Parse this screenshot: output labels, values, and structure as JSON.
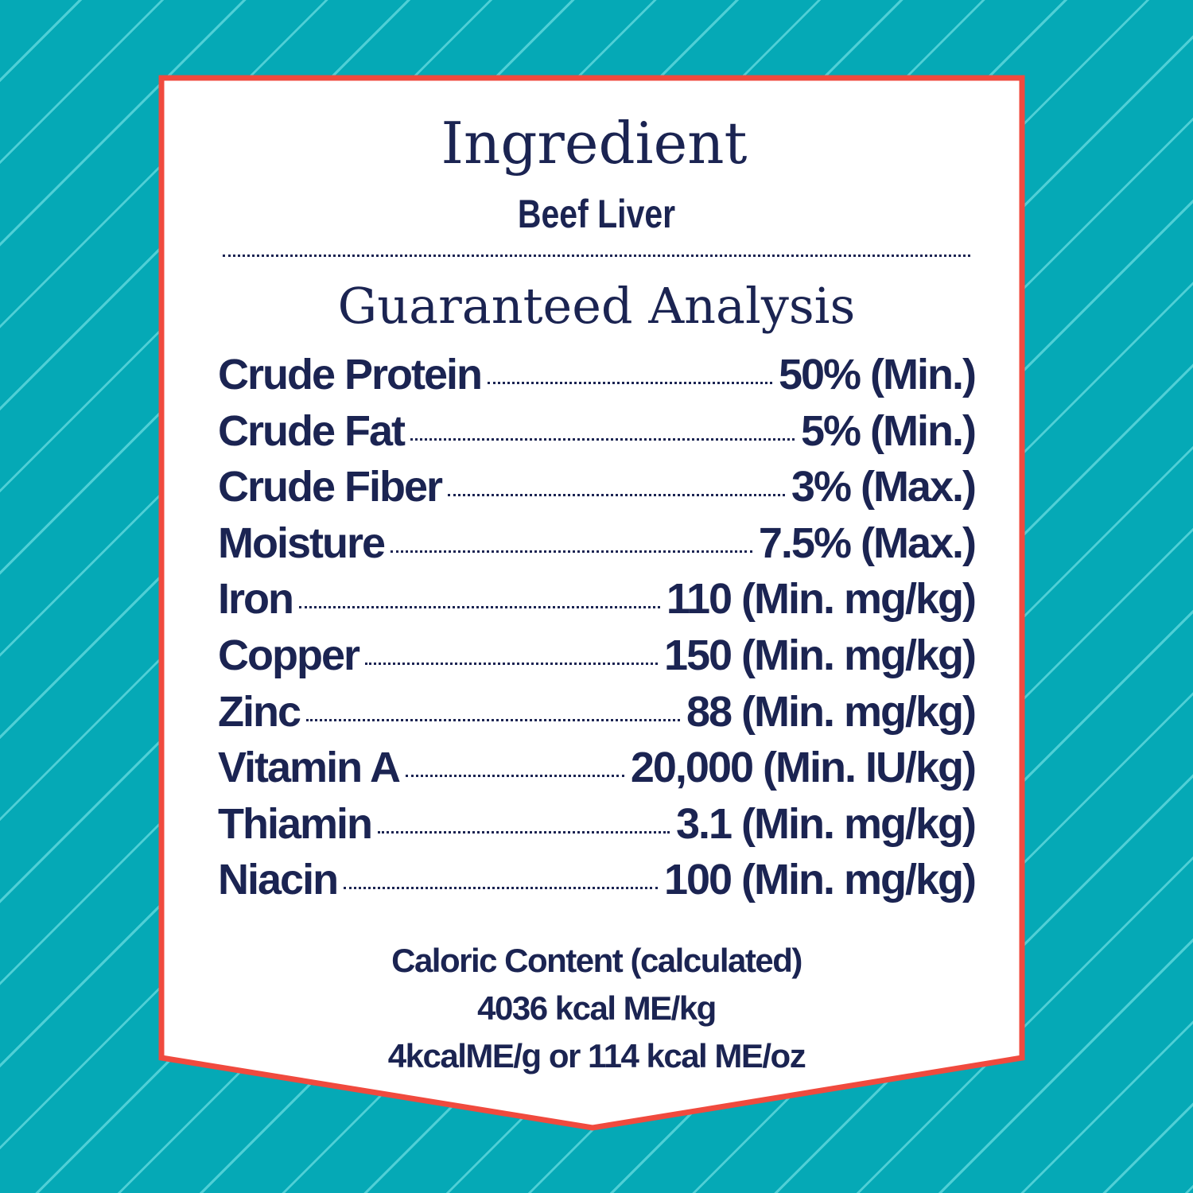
{
  "colors": {
    "background": "#05a9b6",
    "stripe": "#4fcfd6",
    "border": "#f04a3e",
    "text": "#1b2452"
  },
  "ingredient": {
    "title": "Ingredient",
    "value": "Beef Liver"
  },
  "analysis": {
    "title": "Guaranteed Analysis",
    "rows": [
      {
        "label": "Crude Protein",
        "value": "50% (Min.)"
      },
      {
        "label": "Crude Fat",
        "value": "5% (Min.)"
      },
      {
        "label": "Crude Fiber",
        "value": "3% (Max.)"
      },
      {
        "label": "Moisture",
        "value": "7.5% (Max.)"
      },
      {
        "label": "Iron",
        "value": "110 (Min. mg/kg)"
      },
      {
        "label": "Copper",
        "value": "150 (Min. mg/kg)"
      },
      {
        "label": "Zinc",
        "value": "88 (Min. mg/kg)"
      },
      {
        "label": "Vitamin A",
        "value": "20,000 (Min. IU/kg)"
      },
      {
        "label": "Thiamin",
        "value": "3.1 (Min. mg/kg)"
      },
      {
        "label": "Niacin",
        "value": "100 (Min. mg/kg)"
      }
    ]
  },
  "caloric": {
    "line1": "Caloric Content (calculated)",
    "line2": "4036 kcal ME/kg",
    "line3": "4kcalME/g or 114 kcal ME/oz"
  }
}
